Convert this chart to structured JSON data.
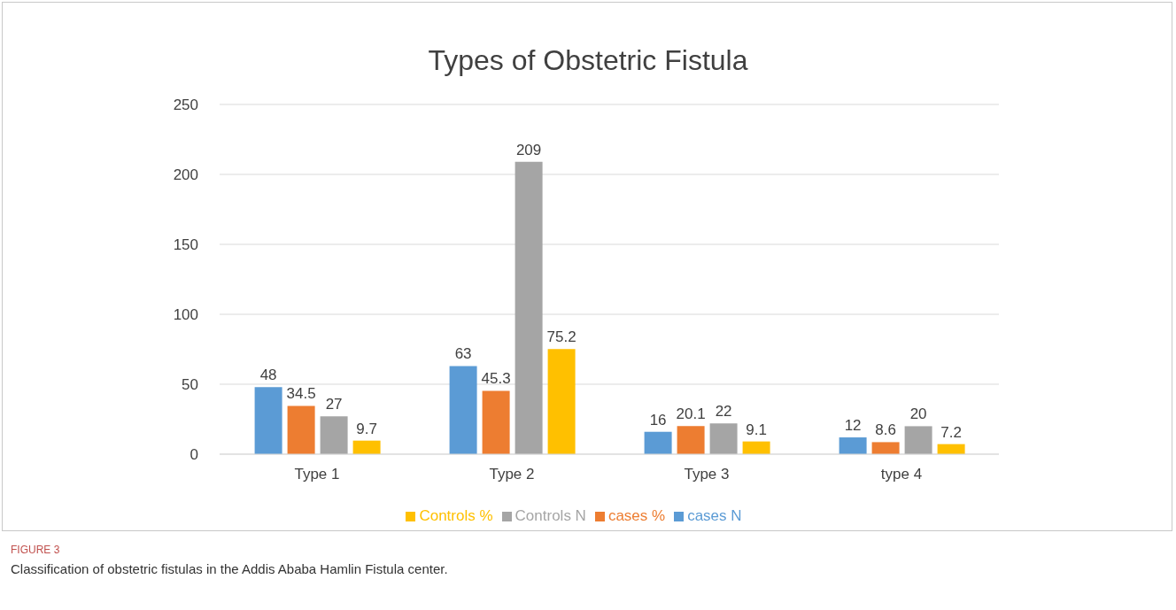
{
  "chart_data": {
    "type": "bar",
    "title": "Types of Obstetric Fistula",
    "categories": [
      "Type 1",
      "Type 2",
      "Type 3",
      "type 4"
    ],
    "series": [
      {
        "name": "cases  N",
        "color": "#5b9bd5",
        "values": [
          48,
          63,
          16,
          12
        ]
      },
      {
        "name": "cases  %",
        "color": "#ed7d31",
        "values": [
          34.5,
          45.3,
          20.1,
          8.6
        ]
      },
      {
        "name": "Controls N",
        "color": "#a5a5a5",
        "values": [
          27,
          209,
          22,
          20
        ]
      },
      {
        "name": "Controls %",
        "color": "#ffc000",
        "values": [
          9.7,
          75.2,
          9.1,
          7.2
        ]
      }
    ],
    "ylim": [
      0,
      250
    ],
    "yticks": [
      0,
      50,
      100,
      150,
      200,
      250
    ],
    "grid": "y",
    "legend": "bottom",
    "data_labels": true,
    "annotations": [
      "FIGURE 3",
      "Classification of obstetric fistulas in the Addis Ababa Hamlin Fistula center."
    ]
  }
}
